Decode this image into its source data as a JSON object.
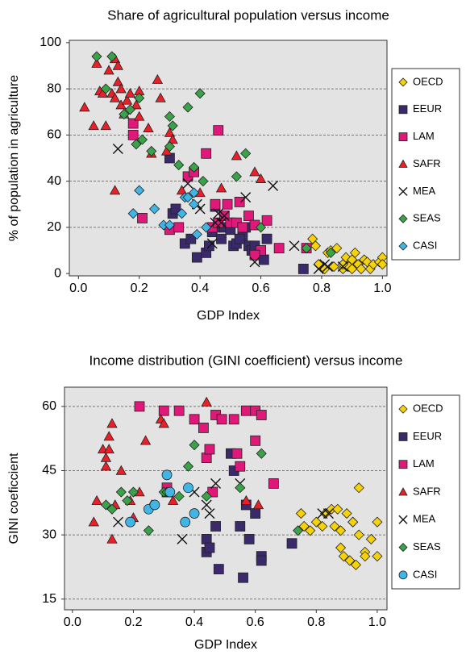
{
  "chart_data": [
    {
      "type": "scatter",
      "title": "Share of agricultural population versus income",
      "x_label": "GDP Index",
      "y_label": "% of population in agriculture",
      "xlim": [
        -0.03,
        1.015
      ],
      "ylim": [
        -1,
        101
      ],
      "xticks": [
        {
          "value": 0,
          "label": "0.0"
        },
        0.2,
        0.4,
        0.6,
        0.8,
        {
          "value": 1,
          "label": "1.0"
        }
      ],
      "yticks": [
        0,
        20,
        40,
        60,
        80,
        100
      ],
      "grid": true,
      "legend": "right",
      "series": [
        {
          "name": "OECD",
          "color": "#f5d20a",
          "marker": "diamond",
          "x": [
            0.77,
            0.78,
            0.79,
            0.81,
            0.82,
            0.83,
            0.84,
            0.85,
            0.87,
            0.88,
            0.88,
            0.89,
            0.9,
            0.91,
            0.92,
            0.93,
            0.94,
            0.95,
            0.96,
            0.97,
            0.99,
            1.0,
            1.0,
            0.87,
            0.9
          ],
          "y": [
            15,
            12,
            4,
            2,
            9,
            10,
            3,
            11,
            2,
            5,
            7,
            3,
            6,
            9,
            4,
            2,
            6,
            5,
            2,
            4,
            5,
            7,
            4,
            4,
            2
          ]
        },
        {
          "name": "EEUR",
          "color": "#3b2a6b",
          "marker": "square",
          "x": [
            0.3,
            0.31,
            0.32,
            0.35,
            0.37,
            0.39,
            0.42,
            0.43,
            0.44,
            0.45,
            0.47,
            0.48,
            0.5,
            0.51,
            0.52,
            0.54,
            0.55,
            0.56,
            0.57,
            0.58,
            0.6,
            0.61,
            0.62,
            0.74,
            0.45,
            0.53
          ],
          "y": [
            50,
            26,
            28,
            13,
            15,
            7,
            9,
            12,
            18,
            20,
            15,
            20,
            19,
            12,
            13,
            16,
            20,
            12,
            10,
            12,
            10,
            6,
            15,
            2,
            29,
            15
          ]
        },
        {
          "name": "LAM",
          "color": "#e0187a",
          "marker": "square",
          "x": [
            0.18,
            0.18,
            0.21,
            0.3,
            0.33,
            0.36,
            0.38,
            0.42,
            0.44,
            0.46,
            0.46,
            0.48,
            0.49,
            0.5,
            0.52,
            0.53,
            0.54,
            0.56,
            0.58,
            0.6,
            0.62,
            0.66,
            0.58,
            0.45,
            0.75
          ],
          "y": [
            65,
            60,
            24,
            19,
            20,
            42,
            44,
            52,
            20,
            62,
            22,
            25,
            30,
            22,
            22,
            31,
            20,
            25,
            21,
            10,
            23,
            11,
            8,
            30,
            11
          ]
        },
        {
          "name": "SAFR",
          "color": "#e8202a",
          "marker": "triangle",
          "x": [
            0.02,
            0.05,
            0.06,
            0.07,
            0.08,
            0.09,
            0.1,
            0.11,
            0.12,
            0.12,
            0.13,
            0.13,
            0.14,
            0.14,
            0.15,
            0.16,
            0.17,
            0.19,
            0.2,
            0.2,
            0.23,
            0.24,
            0.26,
            0.27,
            0.3,
            0.31,
            0.34,
            0.4,
            0.47,
            0.52,
            0.58,
            0.6,
            0.12,
            0.29
          ],
          "y": [
            72,
            64,
            91,
            79,
            78,
            64,
            88,
            78,
            93,
            76,
            83,
            90,
            80,
            73,
            69,
            75,
            78,
            73,
            79,
            68,
            63,
            52,
            84,
            76,
            61,
            58,
            36,
            35,
            37,
            51,
            44,
            41,
            36,
            53
          ]
        },
        {
          "name": "MEA",
          "color": "#111111",
          "marker": "x",
          "x": [
            0.13,
            0.36,
            0.39,
            0.4,
            0.44,
            0.45,
            0.46,
            0.47,
            0.48,
            0.55,
            0.58,
            0.64,
            0.71,
            0.79,
            0.81,
            0.82,
            0.87
          ],
          "y": [
            54,
            39,
            30,
            28,
            13,
            22,
            26,
            22,
            25,
            33,
            5,
            38,
            12,
            2,
            4,
            3,
            3
          ]
        },
        {
          "name": "SEAS",
          "color": "#3aa34a",
          "marker": "diamond",
          "x": [
            0.06,
            0.09,
            0.11,
            0.15,
            0.17,
            0.19,
            0.2,
            0.21,
            0.24,
            0.3,
            0.31,
            0.33,
            0.36,
            0.38,
            0.4,
            0.41,
            0.52,
            0.55,
            0.6,
            0.75,
            0.83,
            0.3
          ],
          "y": [
            94,
            80,
            94,
            69,
            71,
            56,
            76,
            58,
            53,
            68,
            64,
            47,
            72,
            46,
            78,
            40,
            42,
            52,
            20,
            11,
            9,
            55
          ]
        },
        {
          "name": "CASI",
          "color": "#41b6e6",
          "marker": "diamond",
          "x": [
            0.18,
            0.2,
            0.25,
            0.28,
            0.3,
            0.34,
            0.35,
            0.36,
            0.38,
            0.38,
            0.42,
            0.39
          ],
          "y": [
            26,
            36,
            28,
            21,
            21,
            26,
            33,
            33,
            30,
            35,
            20,
            17
          ]
        }
      ]
    },
    {
      "type": "scatter",
      "title": "Income distribution (GINI coefficient) versus income",
      "x_label": "GDP Index",
      "y_label": "GINI coeficcient",
      "xlim": [
        -0.026,
        1.032
      ],
      "ylim": [
        12.5,
        64.5
      ],
      "xticks": [
        {
          "value": 0,
          "label": "0.0"
        },
        0.2,
        0.4,
        0.6,
        0.8,
        {
          "value": 1,
          "label": "1.0"
        }
      ],
      "yticks": [
        15,
        30,
        45,
        60
      ],
      "grid": true,
      "legend": "right",
      "series": [
        {
          "name": "OECD",
          "color": "#f5d20a",
          "marker": "diamond",
          "x": [
            0.75,
            0.76,
            0.78,
            0.8,
            0.82,
            0.83,
            0.85,
            0.86,
            0.87,
            0.88,
            0.88,
            0.89,
            0.9,
            0.91,
            0.92,
            0.92,
            0.93,
            0.94,
            0.94,
            0.96,
            0.96,
            0.98,
            1.0,
            1.0
          ],
          "y": [
            35,
            32,
            31,
            33,
            32,
            35,
            36,
            32,
            36,
            27,
            31,
            25,
            35,
            24,
            33,
            33,
            23,
            41,
            30,
            26,
            25,
            29,
            33,
            25
          ]
        },
        {
          "name": "EEUR",
          "color": "#3b2a6b",
          "marker": "square",
          "x": [
            0.31,
            0.44,
            0.44,
            0.45,
            0.47,
            0.48,
            0.52,
            0.53,
            0.55,
            0.56,
            0.57,
            0.58,
            0.6,
            0.62,
            0.62,
            0.72
          ],
          "y": [
            40,
            29,
            26,
            27,
            32,
            22,
            49,
            45,
            32,
            20,
            37,
            29,
            35,
            25,
            24,
            28
          ]
        },
        {
          "name": "LAM",
          "color": "#e0187a",
          "marker": "square",
          "x": [
            0.22,
            0.3,
            0.31,
            0.35,
            0.4,
            0.43,
            0.44,
            0.45,
            0.46,
            0.47,
            0.49,
            0.53,
            0.54,
            0.55,
            0.57,
            0.6,
            0.6,
            0.62,
            0.66
          ],
          "y": [
            60,
            59,
            41,
            59,
            57,
            55,
            48,
            50,
            40,
            58,
            57,
            57,
            49,
            46,
            59,
            59,
            52,
            58,
            42
          ]
        },
        {
          "name": "SAFR",
          "color": "#e8202a",
          "marker": "triangle",
          "x": [
            0.07,
            0.08,
            0.1,
            0.11,
            0.11,
            0.12,
            0.13,
            0.13,
            0.14,
            0.16,
            0.19,
            0.2,
            0.24,
            0.26,
            0.29,
            0.3,
            0.33,
            0.44,
            0.57,
            0.61,
            0.12,
            0.22
          ],
          "y": [
            33,
            38,
            50,
            46,
            48,
            50,
            56,
            29,
            37,
            45,
            38,
            34,
            52,
            37,
            57,
            56,
            38,
            61,
            38,
            37,
            53,
            40
          ]
        },
        {
          "name": "MEA",
          "color": "#111111",
          "marker": "x",
          "x": [
            0.15,
            0.36,
            0.4,
            0.44,
            0.45,
            0.47,
            0.55,
            0.82,
            0.84
          ],
          "y": [
            33,
            29,
            40,
            37,
            35,
            42,
            42,
            35,
            35
          ]
        },
        {
          "name": "SEAS",
          "color": "#3aa34a",
          "marker": "diamond",
          "x": [
            0.11,
            0.13,
            0.16,
            0.18,
            0.2,
            0.25,
            0.3,
            0.31,
            0.35,
            0.38,
            0.4,
            0.44,
            0.55,
            0.62,
            0.74
          ],
          "y": [
            37,
            36,
            40,
            38,
            40,
            31,
            40,
            40,
            39,
            46,
            51,
            39,
            41,
            49,
            31
          ]
        },
        {
          "name": "CASI",
          "color": "#41b6e6",
          "marker": "circle",
          "x": [
            0.19,
            0.25,
            0.27,
            0.31,
            0.32,
            0.37,
            0.38,
            0.4
          ],
          "y": [
            33,
            36,
            37,
            44,
            40,
            33,
            41,
            35
          ]
        }
      ]
    }
  ]
}
